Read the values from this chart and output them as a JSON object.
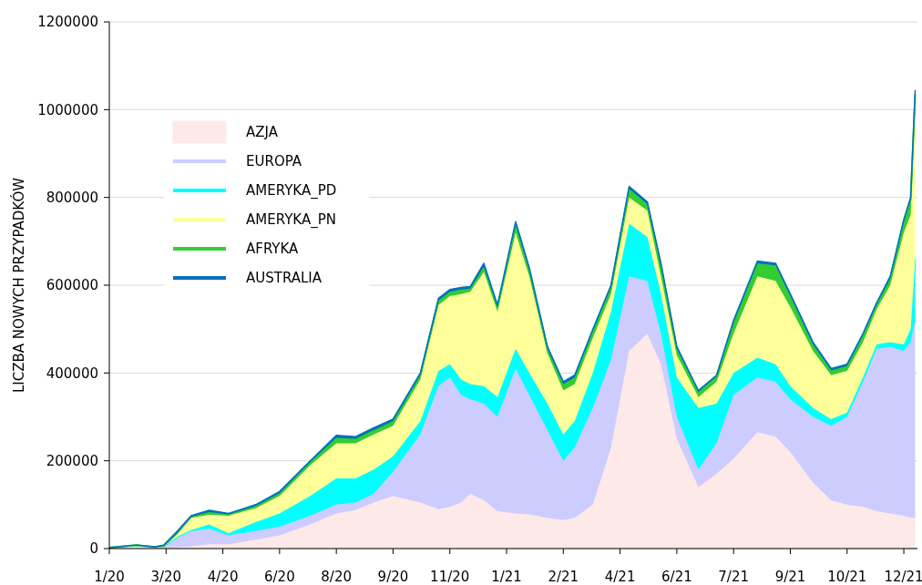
{
  "chart_data": {
    "type": "area",
    "stacked": true,
    "ylabel": "LICZBA NOWYCH PRZYPADKÓW",
    "legend": "top left",
    "grid": "y",
    "x": [
      "2020-01-20",
      "2020-02-13",
      "2020-02-29",
      "2020-03-08",
      "2020-03-20",
      "2020-04-01",
      "2020-04-17",
      "2020-05-04",
      "2020-05-28",
      "2020-06-18",
      "2020-07-15",
      "2020-08-07",
      "2020-08-24",
      "2020-09-09",
      "2020-09-26",
      "2020-10-20",
      "2020-11-05",
      "2020-11-15",
      "2020-11-25",
      "2020-12-03",
      "2020-12-15",
      "2020-12-27",
      "2021-01-12",
      "2021-01-24",
      "2021-02-09",
      "2021-02-23",
      "2021-03-05",
      "2021-03-21",
      "2021-04-06",
      "2021-04-22",
      "2021-05-08",
      "2021-05-20",
      "2021-06-03",
      "2021-06-22",
      "2021-07-08",
      "2021-07-23",
      "2021-08-13",
      "2021-08-29",
      "2021-09-11",
      "2021-10-01",
      "2021-10-17",
      "2021-10-31",
      "2021-11-14",
      "2021-11-26",
      "2021-12-08",
      "2021-12-20",
      "2021-12-26",
      "2021-12-30"
    ],
    "xlim": [
      "2020-01-20",
      "2022-01-01"
    ],
    "xticks": [
      {
        "value": "2020-01-20",
        "label": "1/20"
      },
      {
        "value": "2020-03-10",
        "label": "3/20"
      },
      {
        "value": "2020-04-29",
        "label": "4/20"
      },
      {
        "value": "2020-06-18",
        "label": "6/20"
      },
      {
        "value": "2020-08-07",
        "label": "8/20"
      },
      {
        "value": "2020-09-26",
        "label": "9/20"
      },
      {
        "value": "2020-11-15",
        "label": "11/20"
      },
      {
        "value": "2021-01-04",
        "label": "1/21"
      },
      {
        "value": "2021-02-23",
        "label": "2/21"
      },
      {
        "value": "2021-04-14",
        "label": "4/21"
      },
      {
        "value": "2021-06-03",
        "label": "6/21"
      },
      {
        "value": "2021-07-23",
        "label": "7/21"
      },
      {
        "value": "2021-09-11",
        "label": "9/21"
      },
      {
        "value": "2021-10-31",
        "label": "10/21"
      },
      {
        "value": "2021-12-20",
        "label": "12/21"
      }
    ],
    "ylim": [
      0,
      1200000
    ],
    "yticks": [
      0,
      200000,
      400000,
      600000,
      800000,
      1000000,
      1200000
    ],
    "series": [
      {
        "name": "AZJA",
        "color": "#fde9e7",
        "values": [
          2000,
          8000,
          3000,
          2000,
          3000,
          5000,
          10000,
          10000,
          20000,
          30000,
          55000,
          80000,
          88000,
          105000,
          120000,
          105000,
          90000,
          95000,
          105000,
          125000,
          110000,
          85000,
          80000,
          78000,
          70000,
          65000,
          70000,
          100000,
          230000,
          450000,
          490000,
          420000,
          250000,
          140000,
          170000,
          205000,
          265000,
          255000,
          220000,
          150000,
          110000,
          100000,
          95000,
          85000,
          80000,
          75000,
          70000,
          70000
        ]
      },
      {
        "name": "EUROPA",
        "color": "#ccccff",
        "values": [
          0,
          0,
          0,
          3000,
          22000,
          35000,
          35000,
          20000,
          20000,
          20000,
          20000,
          20000,
          17000,
          20000,
          55000,
          155000,
          280000,
          295000,
          245000,
          215000,
          220000,
          215000,
          330000,
          272000,
          200000,
          135000,
          160000,
          220000,
          200000,
          170000,
          120000,
          70000,
          50000,
          40000,
          70000,
          145000,
          125000,
          125000,
          120000,
          150000,
          170000,
          200000,
          285000,
          370000,
          380000,
          375000,
          400000,
          450000
        ]
      },
      {
        "name": "AMERYKA_PD",
        "color": "#00ffff",
        "values": [
          0,
          0,
          0,
          0,
          2000,
          2000,
          10000,
          5000,
          20000,
          30000,
          45000,
          60000,
          55000,
          55000,
          35000,
          30000,
          35000,
          30000,
          35000,
          35000,
          40000,
          45000,
          45000,
          50000,
          60000,
          60000,
          60000,
          80000,
          110000,
          120000,
          100000,
          90000,
          90000,
          140000,
          90000,
          50000,
          45000,
          40000,
          30000,
          20000,
          15000,
          10000,
          10000,
          10000,
          10000,
          15000,
          30000,
          140000
        ]
      },
      {
        "name": "AMERYKA_PN",
        "color": "#ffff99",
        "values": [
          0,
          0,
          0,
          1000,
          8000,
          28000,
          22000,
          40000,
          32000,
          40000,
          70000,
          80000,
          80000,
          80000,
          70000,
          95000,
          150000,
          155000,
          195000,
          210000,
          260000,
          195000,
          265000,
          220000,
          115000,
          100000,
          85000,
          80000,
          40000,
          60000,
          60000,
          40000,
          50000,
          25000,
          50000,
          90000,
          185000,
          190000,
          180000,
          130000,
          100000,
          95000,
          80000,
          80000,
          130000,
          255000,
          260000,
          340000
        ]
      },
      {
        "name": "AFRYKA",
        "color": "#33cc33",
        "values": [
          0,
          0,
          0,
          0,
          1000,
          2000,
          6000,
          3000,
          5000,
          6000,
          7000,
          12000,
          10000,
          10000,
          10000,
          10000,
          10000,
          10000,
          10000,
          7000,
          12000,
          10000,
          18000,
          15000,
          10000,
          15000,
          15000,
          15000,
          15000,
          20000,
          15000,
          25000,
          15000,
          12000,
          12000,
          25000,
          30000,
          35000,
          25000,
          15000,
          11000,
          11000,
          16000,
          11000,
          15000,
          25000,
          35000,
          35000
        ]
      },
      {
        "name": "AUSTRALIA",
        "color": "#0070c0",
        "values": [
          0,
          0,
          1000,
          2000,
          4000,
          3000,
          4000,
          2000,
          3000,
          4000,
          3000,
          6000,
          5000,
          5000,
          5000,
          5000,
          5000,
          5000,
          5000,
          5000,
          8000,
          5000,
          7000,
          5000,
          5000,
          5000,
          5000,
          5000,
          5000,
          5000,
          5000,
          5000,
          5000,
          3000,
          3000,
          5000,
          5000,
          5000,
          5000,
          5000,
          4000,
          4000,
          4000,
          4000,
          5000,
          5000,
          5000,
          10000
        ]
      }
    ]
  }
}
